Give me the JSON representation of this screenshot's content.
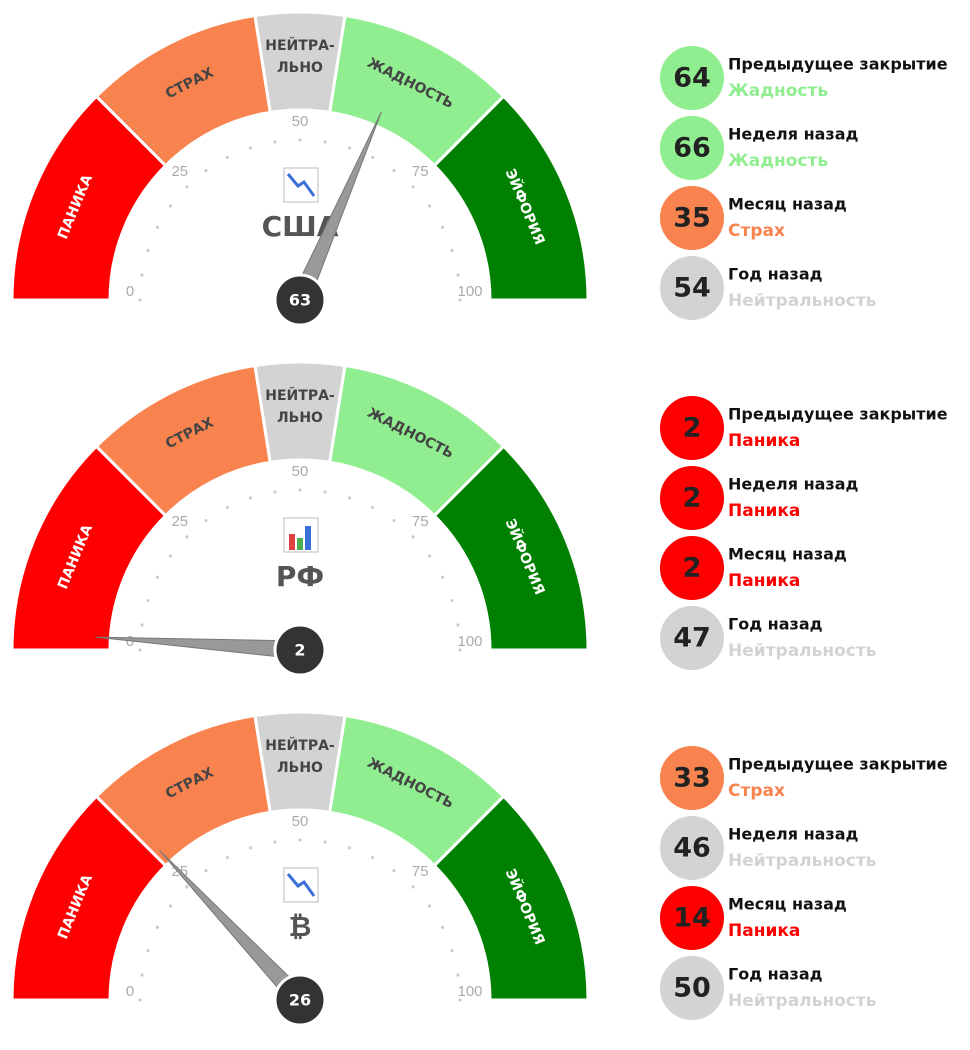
{
  "chart_data": [
    {
      "type": "gauge",
      "title": "США",
      "value": 63,
      "ylim": [
        0,
        100
      ],
      "yticks": [
        0,
        25,
        50,
        75,
        100
      ],
      "zones": [
        {
          "label": [
            "ПАНИКА"
          ],
          "color": "#ff0000",
          "to": 25
        },
        {
          "label": [
            "СТРАХ"
          ],
          "color": "#f9834f",
          "to": 45
        },
        {
          "label": [
            "НЕЙТРА-",
            "ЛЬНО"
          ],
          "color": "#d3d3d3",
          "to": 55
        },
        {
          "label": [
            "ЖАДНОСТЬ"
          ],
          "color": "#90ee90",
          "to": 75
        },
        {
          "label": [
            "ЭЙФОРИЯ"
          ],
          "color": "#008000",
          "to": 100
        }
      ],
      "history": [
        {
          "label": "Предыдущее закрытие",
          "value": 64,
          "status": "Жадность",
          "color": "#90ee90"
        },
        {
          "label": "Неделя назад",
          "value": 66,
          "status": "Жадность",
          "color": "#90ee90"
        },
        {
          "label": "Месяц назад",
          "value": 35,
          "status": "Страх",
          "color": "#f9834f"
        },
        {
          "label": "Год назад",
          "value": 54,
          "status": "Нейтральность",
          "color": "#d3d3d3"
        }
      ]
    },
    {
      "type": "gauge",
      "title": "РФ",
      "value": 2,
      "ylim": [
        0,
        100
      ],
      "yticks": [
        0,
        25,
        50,
        75,
        100
      ],
      "zones": [
        {
          "label": [
            "ПАНИКА"
          ],
          "color": "#ff0000",
          "to": 25
        },
        {
          "label": [
            "СТРАХ"
          ],
          "color": "#f9834f",
          "to": 45
        },
        {
          "label": [
            "НЕЙТРА-",
            "ЛЬНО"
          ],
          "color": "#d3d3d3",
          "to": 55
        },
        {
          "label": [
            "ЖАДНОСТЬ"
          ],
          "color": "#90ee90",
          "to": 75
        },
        {
          "label": [
            "ЭЙФОРИЯ"
          ],
          "color": "#008000",
          "to": 100
        }
      ],
      "history": [
        {
          "label": "Предыдущее закрытие",
          "value": 2,
          "status": "Паника",
          "color": "#ff0000"
        },
        {
          "label": "Неделя назад",
          "value": 2,
          "status": "Паника",
          "color": "#ff0000"
        },
        {
          "label": "Месяц назад",
          "value": 2,
          "status": "Паника",
          "color": "#ff0000"
        },
        {
          "label": "Год назад",
          "value": 47,
          "status": "Нейтральность",
          "color": "#d3d3d3"
        }
      ]
    },
    {
      "type": "gauge",
      "title": "₿",
      "value": 26,
      "ylim": [
        0,
        100
      ],
      "yticks": [
        0,
        25,
        50,
        75,
        100
      ],
      "zones": [
        {
          "label": [
            "ПАНИКА"
          ],
          "color": "#ff0000",
          "to": 25
        },
        {
          "label": [
            "СТРАХ"
          ],
          "color": "#f9834f",
          "to": 45
        },
        {
          "label": [
            "НЕЙТРА-",
            "ЛЬНО"
          ],
          "color": "#d3d3d3",
          "to": 55
        },
        {
          "label": [
            "ЖАДНОСТЬ"
          ],
          "color": "#90ee90",
          "to": 75
        },
        {
          "label": [
            "ЭЙФОРИЯ"
          ],
          "color": "#008000",
          "to": 100
        }
      ],
      "history": [
        {
          "label": "Предыдущее закрытие",
          "value": 33,
          "status": "Страх",
          "color": "#f9834f"
        },
        {
          "label": "Неделя назад",
          "value": 46,
          "status": "Нейтральность",
          "color": "#d3d3d3"
        },
        {
          "label": "Месяц назад",
          "value": 14,
          "status": "Паника",
          "color": "#ff0000"
        },
        {
          "label": "Год назад",
          "value": 50,
          "status": "Нейтральность",
          "color": "#d3d3d3"
        }
      ]
    }
  ]
}
